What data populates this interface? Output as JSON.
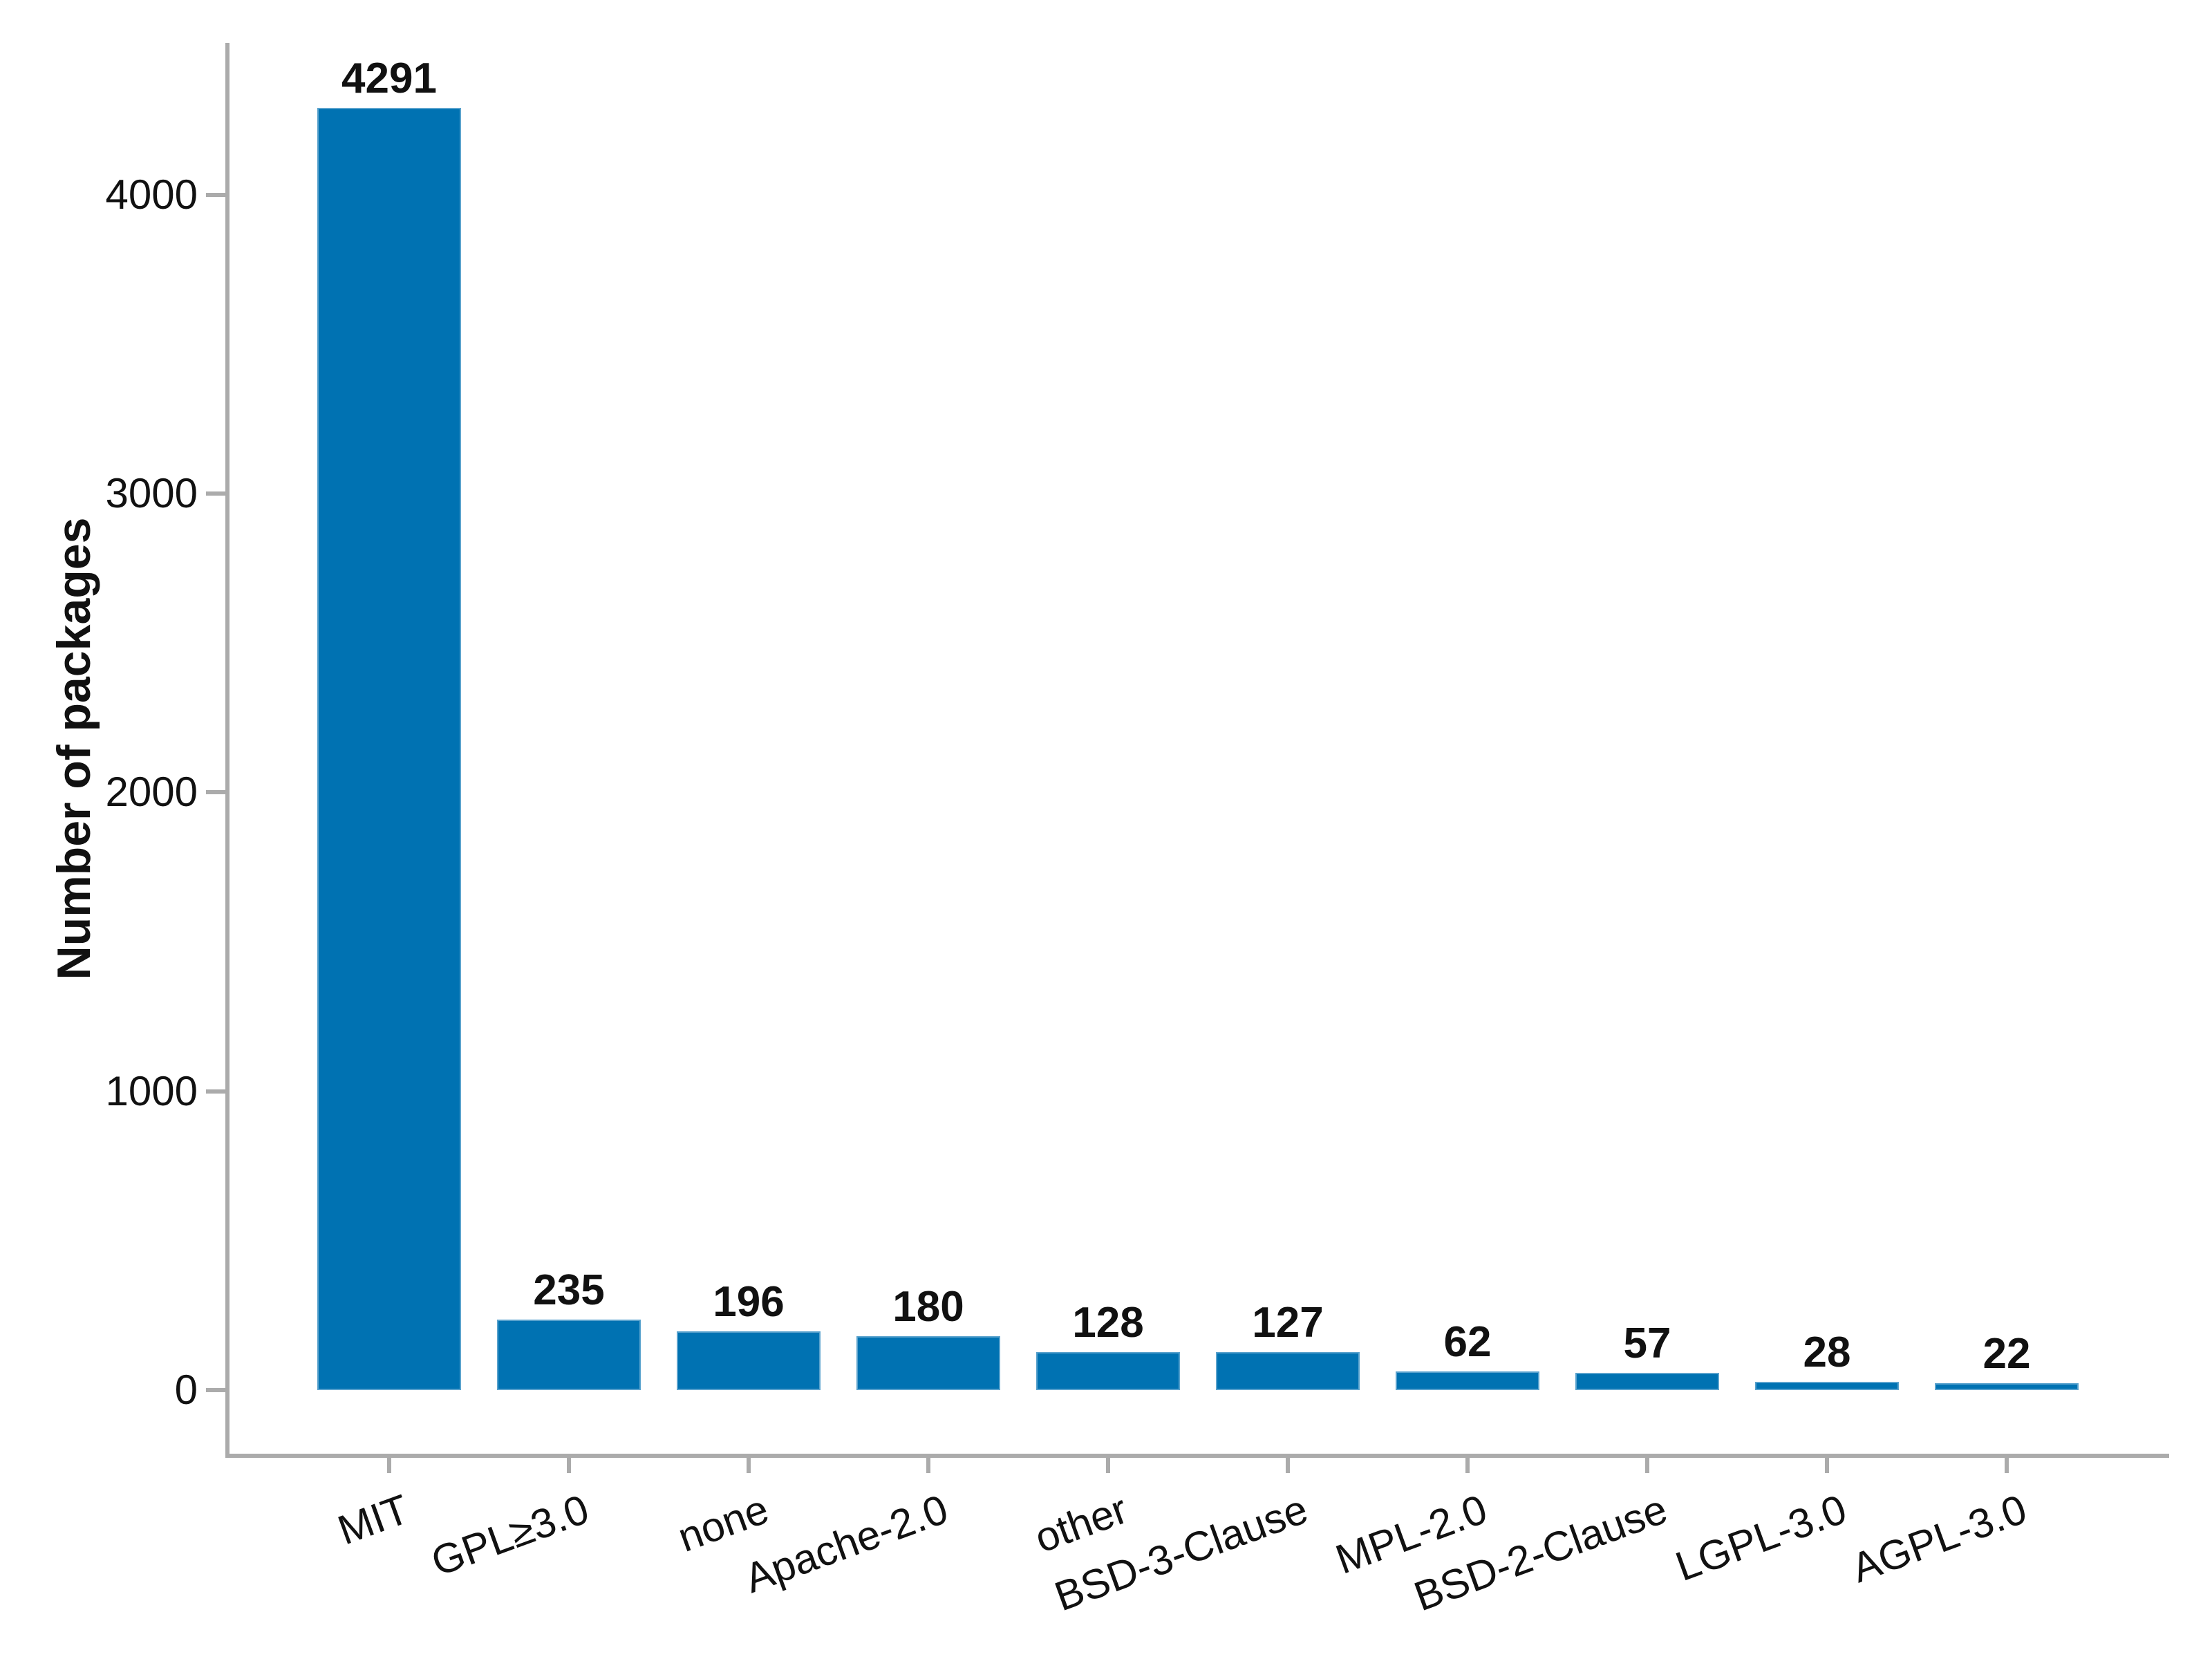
{
  "figure": {
    "background": "#ffffff"
  },
  "chart_data": {
    "type": "bar",
    "title": "",
    "xlabel": "",
    "ylabel": "Number of packages",
    "categories": [
      "MIT",
      "GPL≥3.0",
      "none",
      "Apache-2.0",
      "other",
      "BSD-3-Clause",
      "MPL-2.0",
      "BSD-2-Clause",
      "LGPL-3.0",
      "AGPL-3.0"
    ],
    "values": [
      4291,
      235,
      196,
      180,
      128,
      127,
      62,
      57,
      28,
      22
    ],
    "value_labels": [
      "4291",
      "235",
      "196",
      "180",
      "128",
      "127",
      "62",
      "57",
      "28",
      "22"
    ],
    "yticks": [
      0,
      1000,
      2000,
      3000,
      4000
    ],
    "ytick_labels": [
      "0",
      "1000",
      "2000",
      "3000",
      "4000"
    ],
    "ylim": [
      0,
      4500
    ],
    "grid": "off",
    "legend": "none",
    "bar_color": "#0072B2",
    "bar_edge_color": "#A3CBE3",
    "axis_color": "#ababab",
    "text_color": "#111111",
    "xtick_label_rotation_deg": 20
  }
}
